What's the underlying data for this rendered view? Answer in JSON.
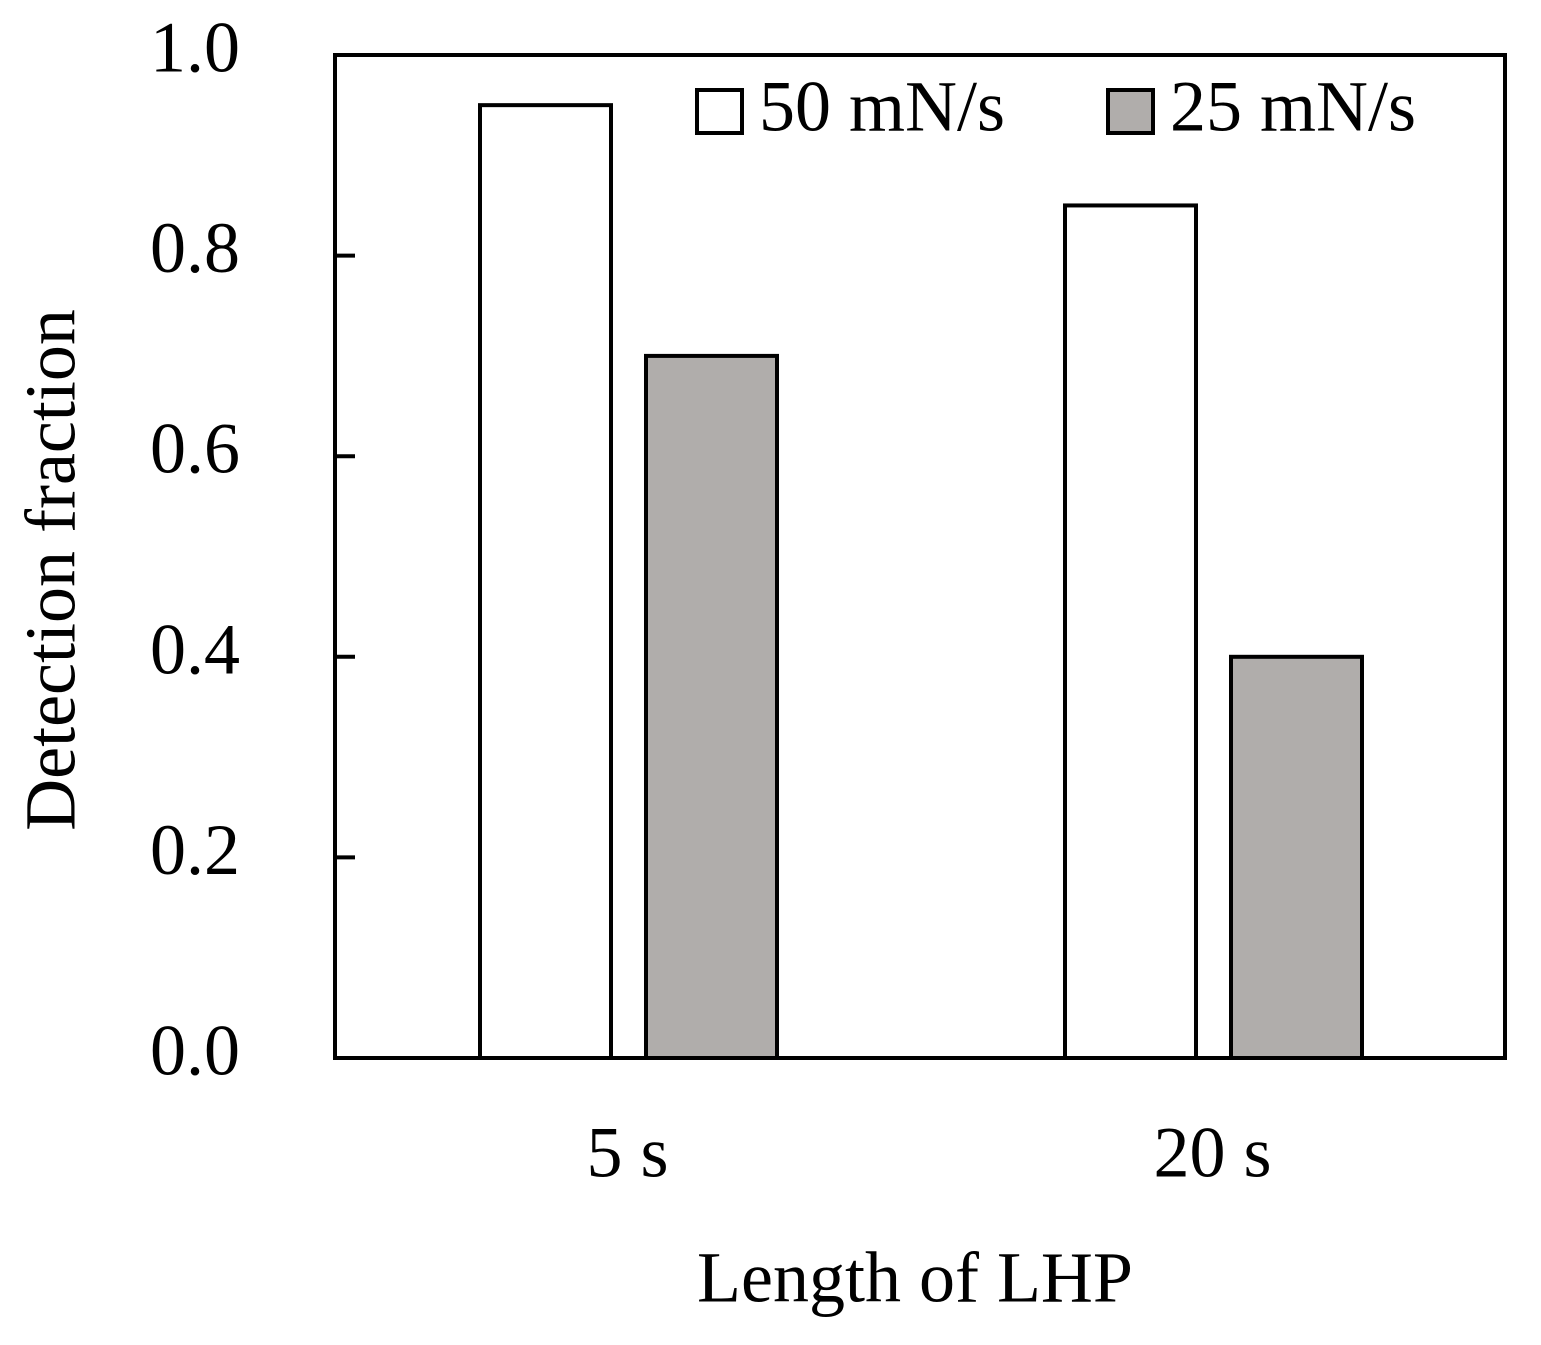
{
  "chart_data": {
    "type": "bar",
    "x_label": "Length of LHP",
    "y_label": "Detection fraction",
    "categories": [
      "5 s",
      "20 s"
    ],
    "series": [
      {
        "name": "50 mN/s",
        "color": "#ffffff",
        "values": [
          0.95,
          0.85
        ]
      },
      {
        "name": "25 mN/s",
        "color": "#b0adab",
        "values": [
          0.7,
          0.4
        ]
      }
    ],
    "ylim": [
      0,
      1
    ],
    "yticks": [
      {
        "value": 0,
        "label": "0.0"
      },
      0.2,
      0.4,
      0.6,
      0.8,
      {
        "value": 1,
        "label": "1.0"
      }
    ],
    "grid": false,
    "legend": "top-right"
  }
}
